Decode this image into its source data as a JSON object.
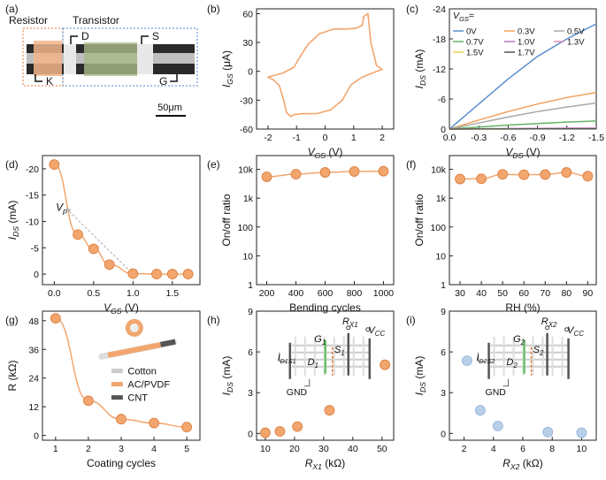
{
  "colors": {
    "orange": "#f2a66e",
    "orange_dark": "#d9793a",
    "blue": "#b9cfe8",
    "blue_dark": "#8fb2d9",
    "gray": "#777777",
    "dark": "#555555",
    "green": "#6cc06a",
    "red_dash": "#e07a3a",
    "blue_dash": "#4a87d0"
  },
  "panel_labels": [
    "(a)",
    "(b)",
    "(c)",
    "(d)",
    "(e)",
    "(f)",
    "(g)",
    "(h)",
    "(i)"
  ],
  "a": {
    "resistor": "Resistor",
    "transistor": "Transistor",
    "D": "D",
    "S": "S",
    "K": "K",
    "G": "G",
    "scale": "50μm"
  },
  "chart_data": [
    {
      "id": "b",
      "type": "line",
      "title": "",
      "xlabel": "V_GS (V)",
      "ylabel": "I_GS (μA)",
      "xlim": [
        -2.4,
        2.4
      ],
      "ylim": [
        -60,
        65
      ],
      "xticks": [
        -2,
        -1,
        0,
        1,
        2
      ],
      "yticks": [
        -60,
        -30,
        0,
        30,
        60
      ],
      "x": [
        -2.0,
        -1.5,
        -1.1,
        -0.9,
        -0.6,
        -0.2,
        0.3,
        0.8,
        1.1,
        1.3,
        1.35,
        1.5,
        1.6,
        1.8,
        2.0,
        1.8,
        1.3,
        0.9,
        0.6,
        0.2,
        -0.3,
        -0.8,
        -1.1,
        -1.2,
        -1.35,
        -1.45,
        -1.6,
        -1.8,
        -2.0
      ],
      "y": [
        -6,
        -2,
        4,
        14,
        28,
        39,
        44,
        44,
        45,
        48,
        57,
        60,
        30,
        6,
        2,
        0,
        -6,
        -14,
        -30,
        -40,
        -44,
        -44,
        -45,
        -47,
        -43,
        -30,
        -15,
        -9,
        -6
      ]
    },
    {
      "id": "c",
      "type": "line",
      "xlabel": "V_DS (V)",
      "ylabel": "I_DS (mA)",
      "legend_title": "V_GS=",
      "xlim": [
        0,
        -1.5
      ],
      "ylim": [
        0,
        -24
      ],
      "xticks": [
        0.0,
        -0.3,
        -0.6,
        -0.9,
        -1.2,
        -1.5
      ],
      "yticks": [
        0,
        -6,
        -12,
        -18,
        -24
      ],
      "x": [
        0,
        -0.3,
        -0.6,
        -0.9,
        -1.2,
        -1.5
      ],
      "series": [
        {
          "name": "0V",
          "color": "#5a8fd0",
          "values": [
            0,
            -5,
            -10,
            -14.5,
            -18,
            -21
          ]
        },
        {
          "name": "0.3V",
          "color": "#f0a05a",
          "values": [
            0,
            -1.8,
            -3.5,
            -5,
            -6.3,
            -7.3
          ]
        },
        {
          "name": "0.5V",
          "color": "#a8a8a8",
          "values": [
            0,
            -1.2,
            -2.4,
            -3.5,
            -4.4,
            -5.2
          ]
        },
        {
          "name": "0.7V",
          "color": "#66b266",
          "values": [
            0,
            -0.4,
            -0.8,
            -1.1,
            -1.4,
            -1.6
          ]
        },
        {
          "name": "1.0V",
          "color": "#b07cc0",
          "values": [
            0,
            -0.05,
            -0.1,
            -0.15,
            -0.2,
            -0.2
          ]
        },
        {
          "name": "1.3V",
          "color": "#e88ab8",
          "values": [
            0,
            -0.03,
            -0.06,
            -0.08,
            -0.1,
            -0.1
          ]
        },
        {
          "name": "1.5V",
          "color": "#e8d84a",
          "values": [
            0,
            -0.02,
            -0.04,
            -0.05,
            -0.06,
            -0.06
          ]
        },
        {
          "name": "1.7V",
          "color": "#555555",
          "values": [
            0,
            -0.01,
            -0.02,
            -0.03,
            -0.04,
            -0.05
          ]
        }
      ]
    },
    {
      "id": "d",
      "type": "scatter",
      "xlabel": "V_GS (V)",
      "ylabel": "I_DS (mA)",
      "annotation": "V_p",
      "xlim": [
        -0.15,
        1.85
      ],
      "ylim": [
        2,
        -22.5
      ],
      "xticks": [
        0.0,
        0.5,
        1.0,
        1.5
      ],
      "yticks": [
        0,
        -5,
        -10,
        -15,
        -20
      ],
      "x": [
        0.0,
        0.3,
        0.5,
        0.7,
        1.0,
        1.3,
        1.5,
        1.7
      ],
      "y": [
        -20.8,
        -7.5,
        -4.8,
        -1.8,
        -0.1,
        0,
        0,
        0
      ]
    },
    {
      "id": "e",
      "type": "scatter",
      "xlabel": "Bending cycles",
      "ylabel": "On/off ratio",
      "yscale": "log",
      "xlim": [
        130,
        1070
      ],
      "ylim": [
        1,
        30000
      ],
      "xticks": [
        200,
        400,
        600,
        800,
        1000
      ],
      "yticks": [
        "1",
        "10",
        "100",
        "1k",
        "10k"
      ],
      "x": [
        200,
        400,
        600,
        800,
        1000
      ],
      "y": [
        5500,
        6800,
        7800,
        8400,
        8600
      ]
    },
    {
      "id": "f",
      "type": "scatter",
      "xlabel": "RH (%)",
      "ylabel": "On/off ratio",
      "yscale": "log",
      "xlim": [
        25,
        94
      ],
      "ylim": [
        1,
        30000
      ],
      "xticks": [
        30,
        40,
        50,
        60,
        70,
        80,
        90
      ],
      "yticks": [
        "1",
        "10",
        "100",
        "1k",
        "10k"
      ],
      "x": [
        30,
        40,
        50,
        60,
        70,
        80,
        90
      ],
      "y": [
        4600,
        4700,
        6700,
        6500,
        6600,
        7800,
        5800
      ]
    },
    {
      "id": "g",
      "type": "scatter",
      "xlabel": "Coating cycles",
      "ylabel": "R (kΩ)",
      "xlim": [
        0.6,
        5.4
      ],
      "ylim": [
        -2,
        52
      ],
      "xticks": [
        1,
        2,
        3,
        4,
        5
      ],
      "yticks": [
        0,
        12,
        24,
        36,
        48
      ],
      "x": [
        1,
        2,
        3,
        4,
        5
      ],
      "y": [
        49,
        14.5,
        6.8,
        5.2,
        3.5
      ],
      "legend": [
        "Cotton",
        "AC/PVDF",
        "CNT"
      ]
    },
    {
      "id": "h",
      "type": "scatter",
      "xlabel": "R_X1 (kΩ)",
      "ylabel": "I_DS (mA)",
      "xlim": [
        7,
        54
      ],
      "ylim": [
        -0.5,
        9
      ],
      "xticks": [
        10,
        20,
        30,
        40,
        50
      ],
      "yticks": [
        0,
        3,
        6,
        9
      ],
      "x": [
        10,
        15,
        21,
        32,
        51
      ],
      "y": [
        0.05,
        0.15,
        0.5,
        1.7,
        5.05
      ],
      "inset_labels": [
        "R_X1",
        "V_CC",
        "G_1",
        "S_1",
        "D_1",
        "I_D1S1",
        "GND"
      ]
    },
    {
      "id": "i",
      "type": "scatter",
      "xlabel": "R_X2 (kΩ)",
      "ylabel": "I_DS (mA)",
      "xlim": [
        1,
        11
      ],
      "ylim": [
        -0.5,
        9
      ],
      "xticks": [
        2,
        4,
        6,
        8,
        10
      ],
      "yticks": [
        0,
        3,
        6,
        9
      ],
      "x": [
        2.2,
        3.1,
        4.3,
        7.7,
        10.0
      ],
      "y": [
        5.35,
        1.7,
        0.55,
        0.1,
        0.05
      ],
      "inset_labels": [
        "R_X2",
        "V_CC",
        "G_2",
        "S_2",
        "D_2",
        "I_D2S2",
        "GND"
      ]
    }
  ]
}
